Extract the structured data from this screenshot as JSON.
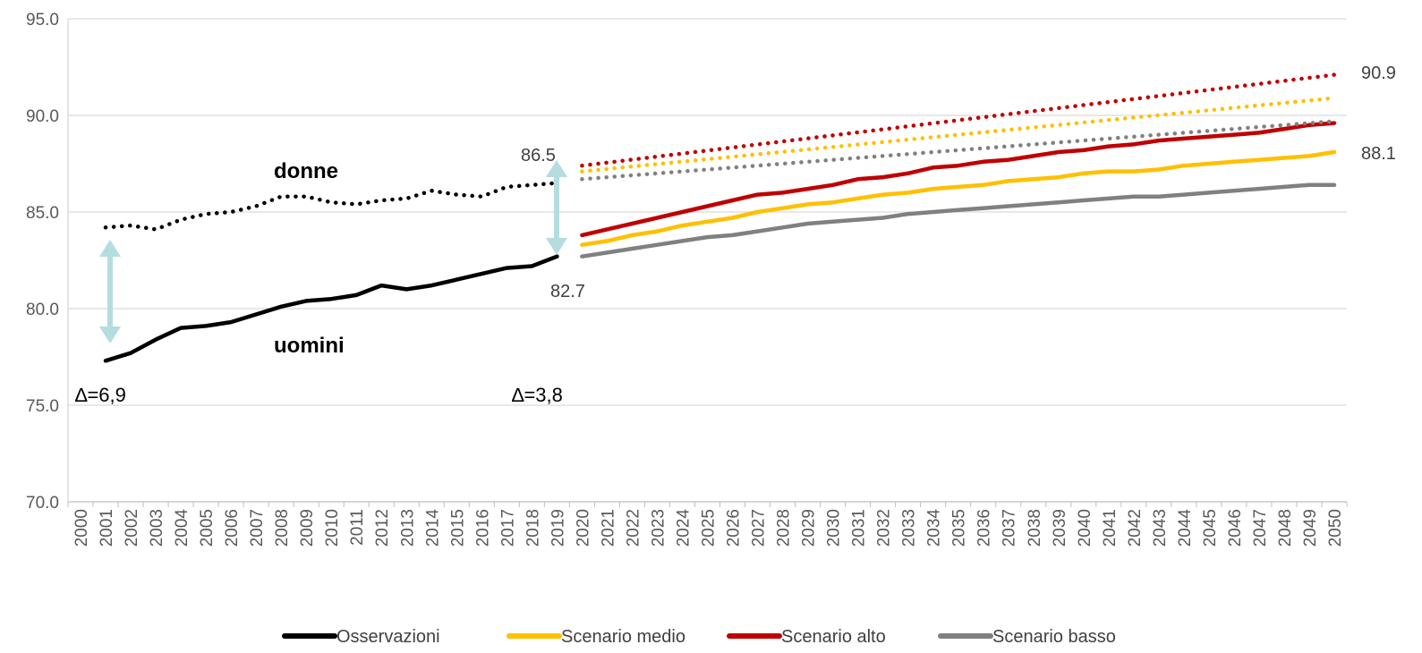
{
  "chart_data": {
    "type": "line",
    "x": [
      2000,
      2001,
      2002,
      2003,
      2004,
      2005,
      2006,
      2007,
      2008,
      2009,
      2010,
      2011,
      2012,
      2013,
      2014,
      2015,
      2016,
      2017,
      2018,
      2019,
      2020,
      2021,
      2022,
      2023,
      2024,
      2025,
      2026,
      2027,
      2028,
      2029,
      2030,
      2031,
      2032,
      2033,
      2034,
      2035,
      2036,
      2037,
      2038,
      2039,
      2040,
      2041,
      2042,
      2043,
      2044,
      2045,
      2046,
      2047,
      2048,
      2049,
      2050
    ],
    "xticklabels": [
      "2000",
      "2001",
      "2002",
      "2003",
      "2004",
      "2005",
      "2006",
      "2007",
      "2008",
      "2009",
      "2010",
      "2011",
      "2012",
      "2013",
      "2014",
      "2015",
      "2016",
      "2017",
      "2018",
      "2019",
      "2020",
      "2021",
      "2022",
      "2023",
      "2024",
      "2025",
      "2026",
      "2027",
      "2028",
      "2029",
      "2030",
      "2031",
      "2032",
      "2033",
      "2034",
      "2035",
      "2036",
      "2037",
      "2038",
      "2039",
      "2040",
      "2041",
      "2042",
      "2043",
      "2044",
      "2045",
      "2046",
      "2047",
      "2048",
      "2049",
      "2050"
    ],
    "yticks": [
      70.0,
      75.0,
      80.0,
      85.0,
      90.0,
      95.0
    ],
    "yticklabels": [
      "70.0",
      "75.0",
      "80.0",
      "85.0",
      "90.0",
      "95.0"
    ],
    "ylim": [
      70,
      95
    ],
    "grid": true,
    "legend_position": "bottom",
    "colors": {
      "observations": "#000000",
      "medium": "#ffc000",
      "high": "#c00000",
      "low": "#808080",
      "arrow": "#b4dde0",
      "grid": "#d9d9d9"
    },
    "legend": [
      {
        "label": "Osservazioni",
        "color": "#000000"
      },
      {
        "label": "Scenario medio",
        "color": "#ffc000"
      },
      {
        "label": "Scenario alto",
        "color": "#c00000"
      },
      {
        "label": "Scenario basso",
        "color": "#808080"
      }
    ],
    "series": [
      {
        "name": "Osservazioni",
        "group": "uomini",
        "color": "#000000",
        "dash": false,
        "x": [
          2001,
          2002,
          2003,
          2004,
          2005,
          2006,
          2007,
          2008,
          2009,
          2010,
          2011,
          2012,
          2013,
          2014,
          2015,
          2016,
          2017,
          2018,
          2019
        ],
        "values": [
          77.3,
          77.7,
          78.4,
          79.0,
          79.1,
          79.3,
          79.7,
          80.1,
          80.4,
          80.5,
          80.7,
          81.2,
          81.0,
          81.2,
          81.5,
          81.8,
          82.1,
          82.2,
          82.7
        ]
      },
      {
        "name": "Osservazioni",
        "group": "donne",
        "color": "#000000",
        "dash": true,
        "x": [
          2001,
          2002,
          2003,
          2004,
          2005,
          2006,
          2007,
          2008,
          2009,
          2010,
          2011,
          2012,
          2013,
          2014,
          2015,
          2016,
          2017,
          2018,
          2019
        ],
        "values": [
          84.2,
          84.3,
          84.1,
          84.6,
          84.9,
          85.0,
          85.3,
          85.8,
          85.8,
          85.5,
          85.4,
          85.6,
          85.7,
          86.1,
          85.9,
          85.8,
          86.3,
          86.4,
          86.5
        ]
      },
      {
        "name": "Scenario alto",
        "group": "uomini",
        "color": "#c00000",
        "dash": false,
        "x": [
          2020,
          2021,
          2022,
          2023,
          2024,
          2025,
          2026,
          2027,
          2028,
          2029,
          2030,
          2031,
          2032,
          2033,
          2034,
          2035,
          2036,
          2037,
          2038,
          2039,
          2040,
          2041,
          2042,
          2043,
          2044,
          2045,
          2046,
          2047,
          2048,
          2049,
          2050
        ],
        "values": [
          83.8,
          84.1,
          84.4,
          84.7,
          85.0,
          85.3,
          85.6,
          85.9,
          86.0,
          86.2,
          86.4,
          86.7,
          86.8,
          87.0,
          87.3,
          87.4,
          87.6,
          87.7,
          87.9,
          88.1,
          88.2,
          88.4,
          88.5,
          88.7,
          88.8,
          88.9,
          89.0,
          89.1,
          89.3,
          89.5,
          89.6
        ]
      },
      {
        "name": "Scenario medio",
        "group": "uomini",
        "color": "#ffc000",
        "dash": false,
        "x": [
          2020,
          2021,
          2022,
          2023,
          2024,
          2025,
          2026,
          2027,
          2028,
          2029,
          2030,
          2031,
          2032,
          2033,
          2034,
          2035,
          2036,
          2037,
          2038,
          2039,
          2040,
          2041,
          2042,
          2043,
          2044,
          2045,
          2046,
          2047,
          2048,
          2049,
          2050
        ],
        "values": [
          83.3,
          83.5,
          83.8,
          84.0,
          84.3,
          84.5,
          84.7,
          85.0,
          85.2,
          85.4,
          85.5,
          85.7,
          85.9,
          86.0,
          86.2,
          86.3,
          86.4,
          86.6,
          86.7,
          86.8,
          87.0,
          87.1,
          87.1,
          87.2,
          87.4,
          87.5,
          87.6,
          87.7,
          87.8,
          87.9,
          88.1
        ]
      },
      {
        "name": "Scenario basso",
        "group": "uomini",
        "color": "#808080",
        "dash": false,
        "x": [
          2020,
          2021,
          2022,
          2023,
          2024,
          2025,
          2026,
          2027,
          2028,
          2029,
          2030,
          2031,
          2032,
          2033,
          2034,
          2035,
          2036,
          2037,
          2038,
          2039,
          2040,
          2041,
          2042,
          2043,
          2044,
          2045,
          2046,
          2047,
          2048,
          2049,
          2050
        ],
        "values": [
          82.7,
          82.9,
          83.1,
          83.3,
          83.5,
          83.7,
          83.8,
          84.0,
          84.2,
          84.4,
          84.5,
          84.6,
          84.7,
          84.9,
          85.0,
          85.1,
          85.2,
          85.3,
          85.4,
          85.5,
          85.6,
          85.7,
          85.8,
          85.8,
          85.9,
          86.0,
          86.1,
          86.2,
          86.3,
          86.4,
          86.4
        ]
      },
      {
        "name": "Scenario alto",
        "group": "donne",
        "color": "#c00000",
        "dash": true,
        "x": [
          2020,
          2050
        ],
        "values": [
          87.4,
          92.1
        ]
      },
      {
        "name": "Scenario medio",
        "group": "donne",
        "color": "#ffc000",
        "dash": true,
        "x": [
          2020,
          2050
        ],
        "values": [
          87.1,
          90.9
        ]
      },
      {
        "name": "Scenario basso",
        "group": "donne",
        "color": "#808080",
        "dash": true,
        "x": [
          2020,
          2050
        ],
        "values": [
          86.7,
          89.7
        ]
      }
    ],
    "annotations": {
      "donne": "donne",
      "uomini": "uomini",
      "delta_2001": "∆=6,9",
      "delta_2019": "∆=3,8",
      "v_86_5": "86.5",
      "v_82_7": "82.7",
      "v_90_9": "90.9",
      "v_88_1": "88.1"
    }
  }
}
